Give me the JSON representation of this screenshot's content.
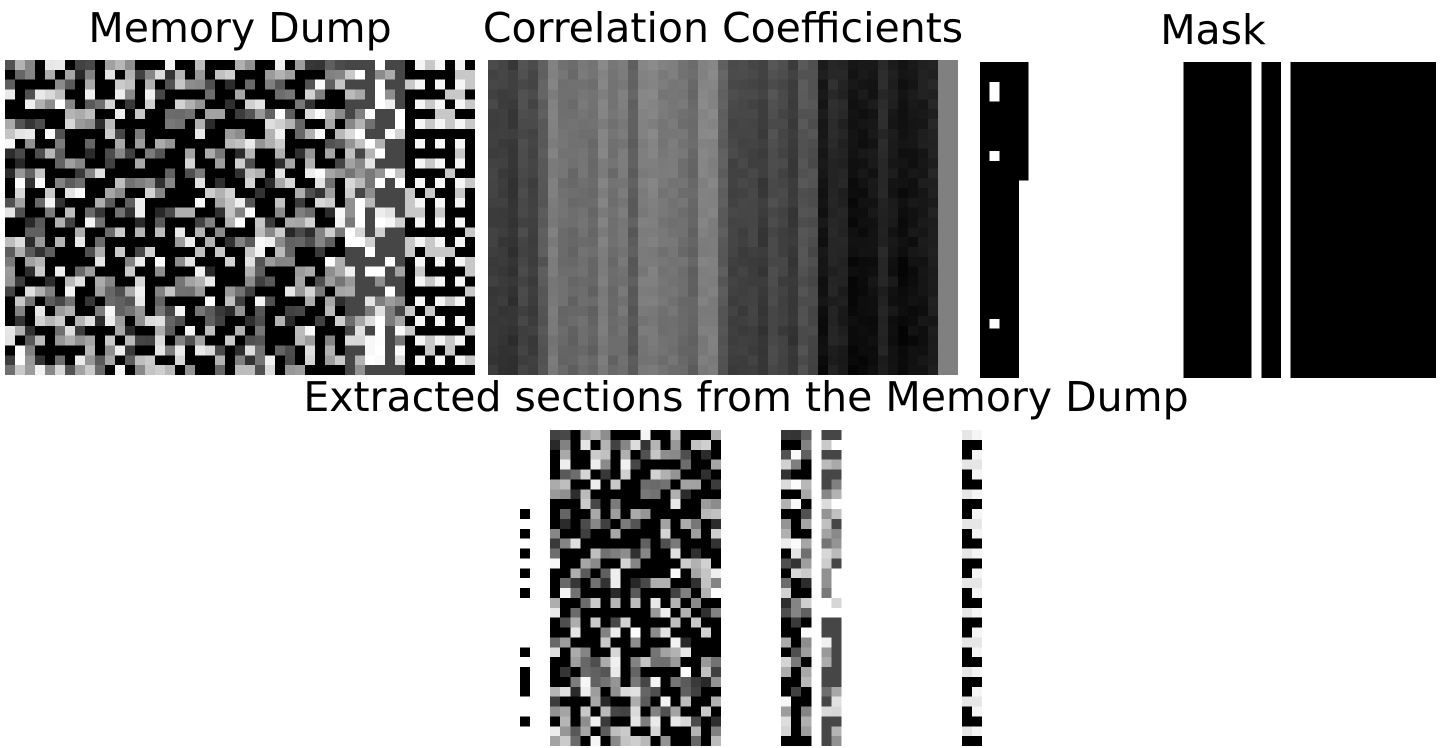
{
  "panels": {
    "memory_dump": {
      "title": "Memory Dump"
    },
    "correlation": {
      "title": "Correlation Coefficients"
    },
    "mask": {
      "title": "Mask"
    },
    "extracted": {
      "title": "Extracted sections from the Memory Dump"
    }
  },
  "colors": {
    "background": "#ffffff",
    "text": "#000000",
    "fill": "#000000"
  },
  "image_grid": {
    "cols": 47,
    "rows": 32
  }
}
